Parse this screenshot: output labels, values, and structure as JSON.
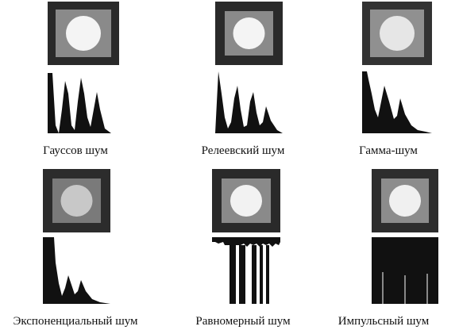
{
  "panels": [
    {
      "id": "gaussian",
      "caption": "Гауссов шум",
      "outer": "#2a2a2a",
      "mid": "#8a8a8a",
      "inner": "#f4f4f4",
      "hist": "gaussian"
    },
    {
      "id": "rayleigh",
      "caption": "Релеевский шум",
      "outer": "#2a2a2a",
      "mid": "#8a8a8a",
      "inner": "#f4f4f4",
      "hist": "rayleigh"
    },
    {
      "id": "gamma",
      "caption": "Гамма-шум",
      "outer": "#333333",
      "mid": "#909090",
      "inner": "#e6e6e6",
      "hist": "gamma"
    },
    {
      "id": "exponential",
      "caption": "Экспоненциальный шум",
      "outer": "#2c2c2c",
      "mid": "#7a7a7a",
      "inner": "#c8c8c8",
      "hist": "exponential"
    },
    {
      "id": "uniform",
      "caption": "Равномерный шум",
      "outer": "#2a2a2a",
      "mid": "#8a8a8a",
      "inner": "#f2f2f2",
      "hist": "uniform"
    },
    {
      "id": "impulse",
      "caption": "Импульсный шум",
      "outer": "#2d2d2d",
      "mid": "#8c8c8c",
      "inner": "#f0f0f0",
      "hist": "impulse"
    }
  ]
}
